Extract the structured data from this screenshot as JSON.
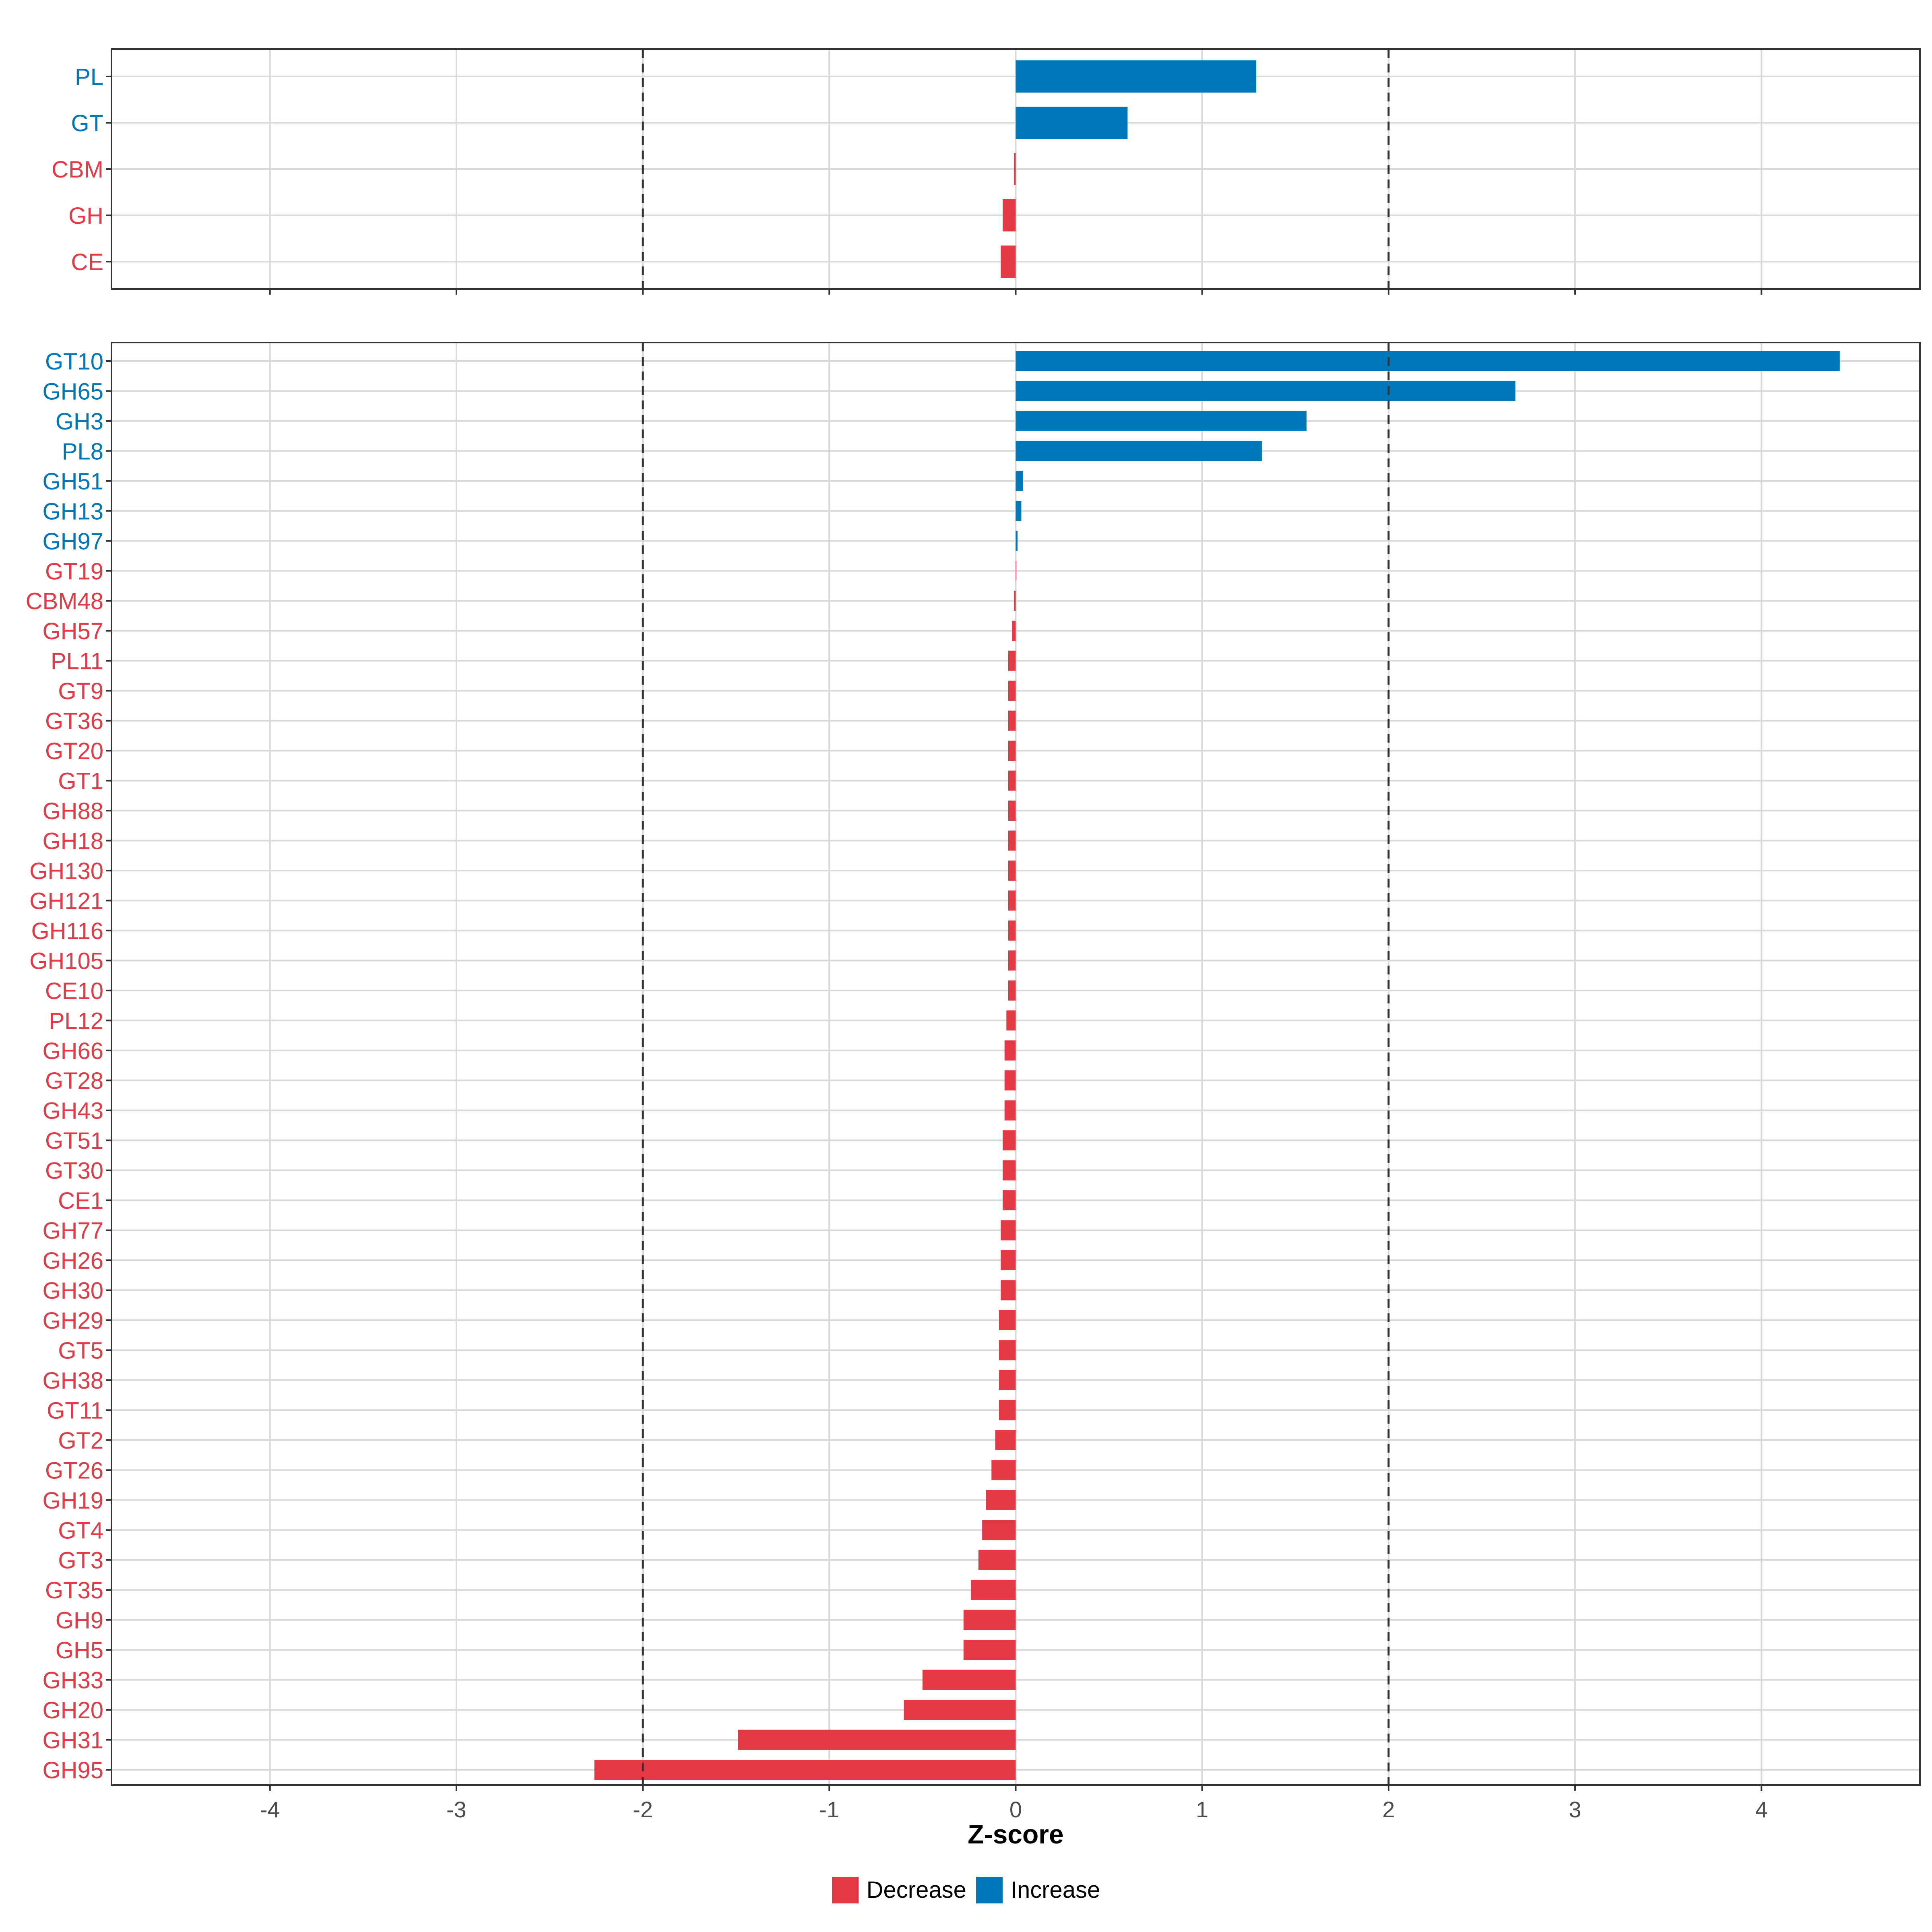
{
  "colors": {
    "decrease": "#E63946",
    "increase": "#0077B8",
    "grid": "#D9D9D9",
    "frame": "#333333",
    "threshold": "#333333"
  },
  "chart_data": [
    {
      "type": "bar",
      "orientation": "horizontal",
      "panel": "class",
      "categories": [
        "PL",
        "GT",
        "CBM",
        "GH",
        "CE"
      ],
      "values": [
        1.29,
        0.6,
        -0.01,
        -0.07,
        -0.08
      ],
      "directions": [
        "Increase",
        "Increase",
        "Decrease",
        "Decrease",
        "Decrease"
      ],
      "xlim": [
        -4.85,
        4.85
      ],
      "xticks": [
        -4,
        -3,
        -2,
        -1,
        0,
        1,
        2,
        3,
        4
      ],
      "thresholds": [
        -2,
        2
      ],
      "grid": true
    },
    {
      "type": "bar",
      "orientation": "horizontal",
      "panel": "family",
      "categories": [
        "GT10",
        "GH65",
        "GH3",
        "PL8",
        "GH51",
        "GH13",
        "GH97",
        "GT19",
        "CBM48",
        "GH57",
        "PL11",
        "GT9",
        "GT36",
        "GT20",
        "GT1",
        "GH88",
        "GH18",
        "GH130",
        "GH121",
        "GH116",
        "GH105",
        "CE10",
        "PL12",
        "GH66",
        "GT28",
        "GH43",
        "GT51",
        "GT30",
        "CE1",
        "GH77",
        "GH26",
        "GH30",
        "GH29",
        "GT5",
        "GH38",
        "GT11",
        "GT2",
        "GT26",
        "GH19",
        "GT4",
        "GT3",
        "GT35",
        "GH9",
        "GH5",
        "GH33",
        "GH20",
        "GH31",
        "GH95"
      ],
      "values": [
        4.42,
        2.68,
        1.56,
        1.32,
        0.04,
        0.03,
        0.01,
        0.0,
        -0.01,
        -0.02,
        -0.04,
        -0.04,
        -0.04,
        -0.04,
        -0.04,
        -0.04,
        -0.04,
        -0.04,
        -0.04,
        -0.04,
        -0.04,
        -0.04,
        -0.05,
        -0.06,
        -0.06,
        -0.06,
        -0.07,
        -0.07,
        -0.07,
        -0.08,
        -0.08,
        -0.08,
        -0.09,
        -0.09,
        -0.09,
        -0.09,
        -0.11,
        -0.13,
        -0.16,
        -0.18,
        -0.2,
        -0.24,
        -0.28,
        -0.28,
        -0.5,
        -0.6,
        -1.49,
        -2.26
      ],
      "directions": [
        "Increase",
        "Increase",
        "Increase",
        "Increase",
        "Increase",
        "Increase",
        "Increase",
        "Decrease",
        "Decrease",
        "Decrease",
        "Decrease",
        "Decrease",
        "Decrease",
        "Decrease",
        "Decrease",
        "Decrease",
        "Decrease",
        "Decrease",
        "Decrease",
        "Decrease",
        "Decrease",
        "Decrease",
        "Decrease",
        "Decrease",
        "Decrease",
        "Decrease",
        "Decrease",
        "Decrease",
        "Decrease",
        "Decrease",
        "Decrease",
        "Decrease",
        "Decrease",
        "Decrease",
        "Decrease",
        "Decrease",
        "Decrease",
        "Decrease",
        "Decrease",
        "Decrease",
        "Decrease",
        "Decrease",
        "Decrease",
        "Decrease",
        "Decrease",
        "Decrease",
        "Decrease",
        "Decrease"
      ],
      "xlim": [
        -4.85,
        4.85
      ],
      "xticks": [
        -4,
        -3,
        -2,
        -1,
        0,
        1,
        2,
        3,
        4
      ],
      "xtick_labels": [
        "-4",
        "-3",
        "-2",
        "-1",
        "0",
        "1",
        "2",
        "3",
        "4"
      ],
      "xlabel": "Z-score",
      "thresholds": [
        -2,
        2
      ],
      "grid": true
    }
  ],
  "legend": {
    "placement": "bottom",
    "items": [
      {
        "label": "Decrease",
        "color": "#E63946"
      },
      {
        "label": "Increase",
        "color": "#0077B8"
      }
    ]
  }
}
